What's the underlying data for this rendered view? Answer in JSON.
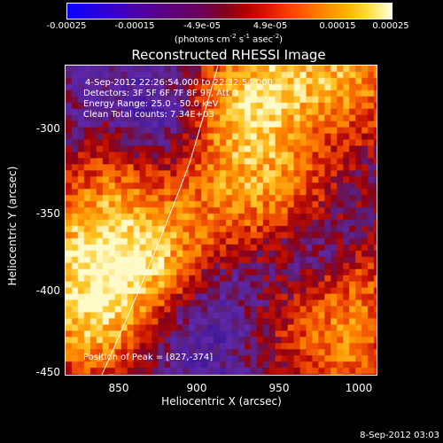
{
  "colorbar": {
    "tick_labels": [
      "-0.00025",
      "-0.00015",
      "-4.9e-05",
      "4.9e-05",
      "0.00015",
      "0.00025"
    ],
    "units_prefix": "(photons cm",
    "units_exp1": "-2",
    "units_mid": " s",
    "units_exp2": "-1",
    "units_mid2": " asec",
    "units_exp3": "-2",
    "units_suffix": ")"
  },
  "plot": {
    "title": "Reconstructed RHESSI Image",
    "info_lines": [
      "4-Sep-2012 22:26:54.000 to 22:32:54.000",
      "Detectors: 3F 5F 6F 7F 8F 9F, Att 0",
      "Energy Range: 25.0 - 50.0 keV",
      "Clean     Total counts: 7.34E+03"
    ],
    "peak_label": "Position of Peak = [827,-374]",
    "x_axis_title": "Heliocentric X (arcsec)",
    "y_axis_title": "Heliocentric Y (arcsec)",
    "x_ticks": [
      "850",
      "900",
      "950",
      "1000"
    ],
    "y_ticks": [
      "-300",
      "-350",
      "-400",
      "-450"
    ]
  },
  "timestamp": "8-Sep-2012 03:03",
  "colors": {
    "limb_line": "#ffffff",
    "background": "#000000"
  }
}
